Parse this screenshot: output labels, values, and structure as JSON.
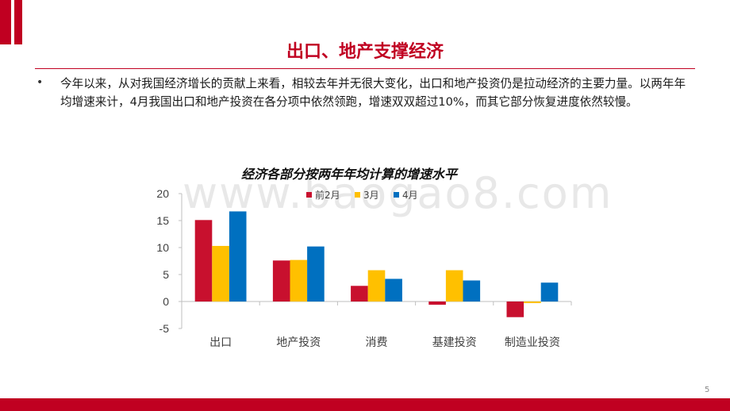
{
  "slide": {
    "title": "出口、地产支撑经济",
    "bullet_symbol": "•",
    "body_text": "今年以来，从对我国经济增长的贡献上来看，相较去年并无很大变化，出口和地产投资仍是拉动经济的主要力量。以两年年均增速来计，4月我国出口和地产投资在各分项中依然领跑，增速双双超过10%，而其它部分恢复进度依然较慢。",
    "page_number": "5",
    "watermark": "www.baogao8.com"
  },
  "colors": {
    "brand_red": "#c00021",
    "series_pre_feb": "#c8102e",
    "series_mar": "#ffc000",
    "series_apr": "#0070c0"
  },
  "chart_data": {
    "type": "bar",
    "title": "经济各部分按两年年均计算的增速水平",
    "categories": [
      "出口",
      "地产投资",
      "消费",
      "基建投资",
      "制造业投资"
    ],
    "series": [
      {
        "name": "前2月",
        "color": "#c8102e",
        "values": [
          15.1,
          7.6,
          2.9,
          -0.6,
          -2.9
        ]
      },
      {
        "name": "3月",
        "color": "#ffc000",
        "values": [
          10.3,
          7.7,
          5.8,
          5.8,
          -0.3
        ]
      },
      {
        "name": "4月",
        "color": "#0070c0",
        "values": [
          16.7,
          10.2,
          4.2,
          3.9,
          3.5
        ]
      }
    ],
    "ylim": [
      -5,
      20
    ],
    "yticks": [
      -5,
      0,
      5,
      10,
      15,
      20
    ],
    "legend_position": "top",
    "grid": false
  }
}
